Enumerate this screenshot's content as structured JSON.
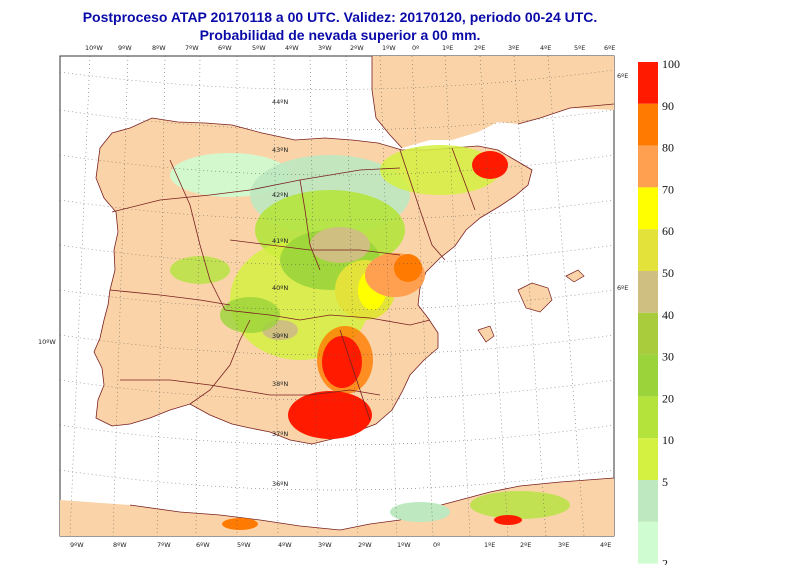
{
  "title_line1": "Postproceso ATAP 20170118 a 00 UTC. Validez: 20170120, periodo 00-24 UTC.",
  "title_line2": "Probabilidad de nevada superior a 00 mm.",
  "lon_labels_top": [
    "10ºW",
    "9ºW",
    "8ºW",
    "7ºW",
    "6ºW",
    "5ºW",
    "4ºW",
    "3ºW",
    "2ºW",
    "1ºW",
    "0º",
    "1ºE",
    "2ºE",
    "3ºE",
    "4ºE",
    "5ºE",
    "6ºE"
  ],
  "lon_labels_bottom": [
    "9ºW",
    "8ºW",
    "7ºW",
    "6ºW",
    "5ºW",
    "4ºW",
    "3ºW",
    "2ºW",
    "1ºW",
    "0º",
    "1ºE",
    "2ºE",
    "3ºE",
    "4ºE"
  ],
  "lat_labels": [
    "44ºN",
    "43ºN",
    "42ºN",
    "41ºN",
    "40ºN",
    "39ºN",
    "38ºN",
    "37ºN",
    "36ºN"
  ],
  "side_labels": {
    "right_top": "6ºE",
    "right_mid": "6ºE",
    "left_mid": "10ºW"
  },
  "legend": {
    "levels": [
      "100",
      "90",
      "80",
      "70",
      "60",
      "50",
      "40",
      "30",
      "20",
      "10",
      "5",
      "2"
    ],
    "colors": [
      "#ff1a00",
      "#ff7a00",
      "#ffa050",
      "#ffff00",
      "#e2e23a",
      "#cfbf80",
      "#a8cc3c",
      "#9ad43a",
      "#b4e43c",
      "#d4f040",
      "#bde8c0",
      "#cffcd0"
    ]
  },
  "colors": {
    "land": "#fad4a8",
    "sea": "#ffffff",
    "border": "#7a2020",
    "title": "#0a0aa8"
  }
}
